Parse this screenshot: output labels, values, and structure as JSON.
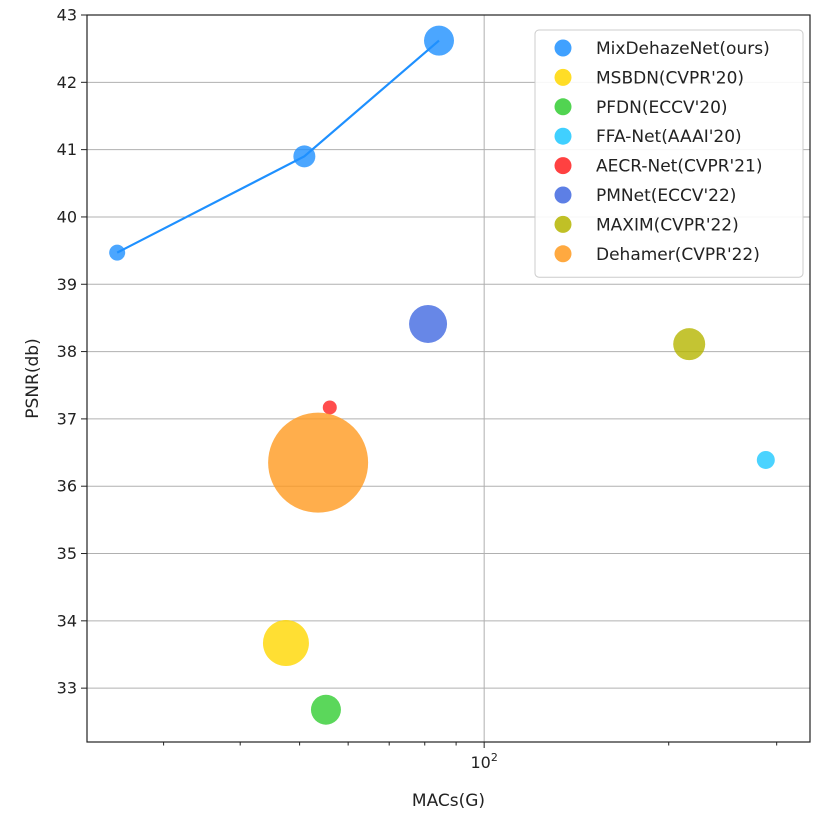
{
  "chart_data": {
    "type": "scatter",
    "xlabel": "MACs(G)",
    "ylabel": "PSNR(db)",
    "xscale": "log",
    "xlim": [
      22.5,
      340
    ],
    "ylim": [
      32.2,
      43.0
    ],
    "x_tick_labels": [
      {
        "value": 100,
        "base": "10",
        "exponent": "2"
      }
    ],
    "y_ticks": [
      33,
      34,
      35,
      36,
      37,
      38,
      39,
      40,
      41,
      42,
      43
    ],
    "grid": true,
    "legend_position": "top-right",
    "series": [
      {
        "name": "MixDehazeNet(ours)",
        "color": "#1e90ff",
        "connected": true,
        "points": [
          {
            "x": 25.2,
            "y": 39.47,
            "size": 8
          },
          {
            "x": 50.9,
            "y": 40.9,
            "size": 11
          },
          {
            "x": 84.4,
            "y": 42.62,
            "size": 15
          }
        ]
      },
      {
        "name": "MSBDN(CVPR'20)",
        "color": "#ffd700",
        "points": [
          {
            "x": 47.5,
            "y": 33.67,
            "size": 23
          }
        ]
      },
      {
        "name": "PFDN(ECCV'20)",
        "color": "#32cd32",
        "points": [
          {
            "x": 55.2,
            "y": 32.68,
            "size": 15
          }
        ]
      },
      {
        "name": "FFA-Net(AAAI'20)",
        "color": "#1ec8ff",
        "points": [
          {
            "x": 288.0,
            "y": 36.39,
            "size": 9
          }
        ]
      },
      {
        "name": "AECR-Net(CVPR'21)",
        "color": "#ff2020",
        "points": [
          {
            "x": 56.0,
            "y": 37.17,
            "size": 7
          }
        ]
      },
      {
        "name": "PMNet(ECCV'22)",
        "color": "#4169e1",
        "points": [
          {
            "x": 81.0,
            "y": 38.41,
            "size": 19
          }
        ]
      },
      {
        "name": "MAXIM(CVPR'22)",
        "color": "#b5b500",
        "points": [
          {
            "x": 216.0,
            "y": 38.11,
            "size": 16
          }
        ]
      },
      {
        "name": "Dehamer(CVPR'22)",
        "color": "#ff9a1f",
        "points": [
          {
            "x": 53.6,
            "y": 36.35,
            "size": 50
          }
        ]
      }
    ]
  }
}
